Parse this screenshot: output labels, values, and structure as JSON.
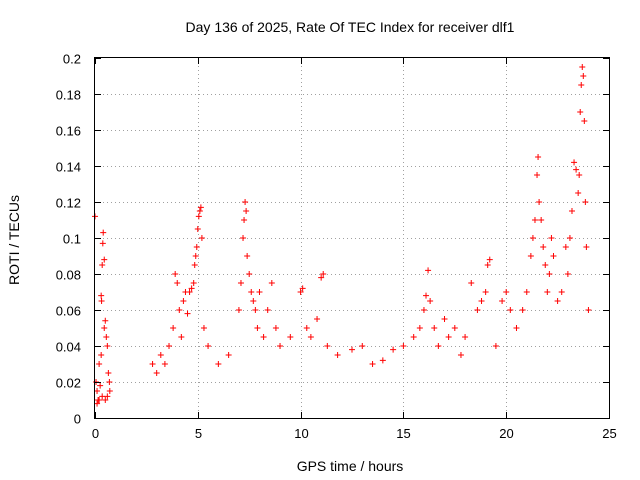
{
  "chart_data": {
    "type": "scatter",
    "title": "Day 136 of 2025, Rate Of TEC Index for receiver dlf1",
    "xlabel": "GPS time / hours",
    "ylabel": "ROTI / TECUs",
    "xlim": [
      0,
      25
    ],
    "ylim": [
      0,
      0.2
    ],
    "xticks": [
      0,
      5,
      10,
      15,
      20,
      25
    ],
    "yticks": [
      0,
      0.02,
      0.04,
      0.06,
      0.08,
      0.1,
      0.12,
      0.14,
      0.16,
      0.18,
      0.2
    ],
    "xtick_labels": [
      "0",
      "5",
      "10",
      "15",
      "20",
      "25"
    ],
    "ytick_labels": [
      "0",
      "0.02",
      "0.04",
      "0.06",
      "0.08",
      "0.1",
      "0.12",
      "0.14",
      "0.16",
      "0.18",
      "0.2"
    ],
    "grid": true,
    "marker": "+",
    "series": [
      {
        "color": "#ff0000",
        "points": [
          [
            0.0,
            0.112
          ],
          [
            0.05,
            0.02
          ],
          [
            0.1,
            0.015
          ],
          [
            0.15,
            0.01
          ],
          [
            0.2,
            0.03
          ],
          [
            0.25,
            0.018
          ],
          [
            0.3,
            0.035
          ],
          [
            0.3,
            0.068
          ],
          [
            0.32,
            0.065
          ],
          [
            0.35,
            0.085
          ],
          [
            0.38,
            0.097
          ],
          [
            0.4,
            0.103
          ],
          [
            0.45,
            0.088
          ],
          [
            0.45,
            0.05
          ],
          [
            0.5,
            0.054
          ],
          [
            0.55,
            0.045
          ],
          [
            0.6,
            0.04
          ],
          [
            0.65,
            0.025
          ],
          [
            0.7,
            0.02
          ],
          [
            0.72,
            0.015
          ],
          [
            0.1,
            0.008
          ],
          [
            0.2,
            0.01
          ],
          [
            0.35,
            0.012
          ],
          [
            0.5,
            0.01
          ],
          [
            0.6,
            0.012
          ],
          [
            2.8,
            0.03
          ],
          [
            3.0,
            0.025
          ],
          [
            3.2,
            0.035
          ],
          [
            3.4,
            0.03
          ],
          [
            3.6,
            0.04
          ],
          [
            3.8,
            0.05
          ],
          [
            3.9,
            0.08
          ],
          [
            4.0,
            0.075
          ],
          [
            4.1,
            0.06
          ],
          [
            4.2,
            0.045
          ],
          [
            4.3,
            0.065
          ],
          [
            4.4,
            0.07
          ],
          [
            4.5,
            0.058
          ],
          [
            4.6,
            0.07
          ],
          [
            4.7,
            0.072
          ],
          [
            4.8,
            0.075
          ],
          [
            4.85,
            0.085
          ],
          [
            4.9,
            0.09
          ],
          [
            4.95,
            0.095
          ],
          [
            5.0,
            0.105
          ],
          [
            5.05,
            0.112
          ],
          [
            5.1,
            0.115
          ],
          [
            5.15,
            0.117
          ],
          [
            5.2,
            0.1
          ],
          [
            5.3,
            0.05
          ],
          [
            5.5,
            0.04
          ],
          [
            6.0,
            0.03
          ],
          [
            6.5,
            0.035
          ],
          [
            7.0,
            0.06
          ],
          [
            7.1,
            0.075
          ],
          [
            7.2,
            0.1
          ],
          [
            7.25,
            0.11
          ],
          [
            7.3,
            0.12
          ],
          [
            7.35,
            0.115
          ],
          [
            7.4,
            0.09
          ],
          [
            7.5,
            0.08
          ],
          [
            7.6,
            0.07
          ],
          [
            7.7,
            0.065
          ],
          [
            7.8,
            0.06
          ],
          [
            7.9,
            0.05
          ],
          [
            8.0,
            0.07
          ],
          [
            8.2,
            0.045
          ],
          [
            8.4,
            0.06
          ],
          [
            8.6,
            0.075
          ],
          [
            8.8,
            0.05
          ],
          [
            9.0,
            0.04
          ],
          [
            9.5,
            0.045
          ],
          [
            10.0,
            0.07
          ],
          [
            10.1,
            0.072
          ],
          [
            10.3,
            0.05
          ],
          [
            10.5,
            0.045
          ],
          [
            10.8,
            0.055
          ],
          [
            11.0,
            0.078
          ],
          [
            11.1,
            0.08
          ],
          [
            11.3,
            0.04
          ],
          [
            11.8,
            0.035
          ],
          [
            12.5,
            0.038
          ],
          [
            13.0,
            0.04
          ],
          [
            13.5,
            0.03
          ],
          [
            14.0,
            0.032
          ],
          [
            14.5,
            0.038
          ],
          [
            15.0,
            0.04
          ],
          [
            15.5,
            0.045
          ],
          [
            15.8,
            0.05
          ],
          [
            16.0,
            0.06
          ],
          [
            16.1,
            0.068
          ],
          [
            16.2,
            0.082
          ],
          [
            16.3,
            0.065
          ],
          [
            16.5,
            0.05
          ],
          [
            16.7,
            0.04
          ],
          [
            17.0,
            0.055
          ],
          [
            17.2,
            0.045
          ],
          [
            17.5,
            0.05
          ],
          [
            17.8,
            0.035
          ],
          [
            18.0,
            0.045
          ],
          [
            18.3,
            0.075
          ],
          [
            18.6,
            0.06
          ],
          [
            18.8,
            0.065
          ],
          [
            19.0,
            0.07
          ],
          [
            19.1,
            0.085
          ],
          [
            19.2,
            0.088
          ],
          [
            19.5,
            0.04
          ],
          [
            19.8,
            0.065
          ],
          [
            20.0,
            0.07
          ],
          [
            20.2,
            0.06
          ],
          [
            20.5,
            0.05
          ],
          [
            20.8,
            0.06
          ],
          [
            21.0,
            0.07
          ],
          [
            21.2,
            0.09
          ],
          [
            21.3,
            0.1
          ],
          [
            21.4,
            0.11
          ],
          [
            21.5,
            0.135
          ],
          [
            21.55,
            0.145
          ],
          [
            21.6,
            0.12
          ],
          [
            21.7,
            0.11
          ],
          [
            21.8,
            0.095
          ],
          [
            21.9,
            0.085
          ],
          [
            22.0,
            0.07
          ],
          [
            22.1,
            0.08
          ],
          [
            22.2,
            0.1
          ],
          [
            22.3,
            0.09
          ],
          [
            22.5,
            0.065
          ],
          [
            22.7,
            0.07
          ],
          [
            22.9,
            0.095
          ],
          [
            23.0,
            0.08
          ],
          [
            23.1,
            0.1
          ],
          [
            23.2,
            0.115
          ],
          [
            23.3,
            0.142
          ],
          [
            23.4,
            0.138
          ],
          [
            23.5,
            0.125
          ],
          [
            23.55,
            0.135
          ],
          [
            23.6,
            0.17
          ],
          [
            23.65,
            0.185
          ],
          [
            23.7,
            0.195
          ],
          [
            23.75,
            0.19
          ],
          [
            23.8,
            0.165
          ],
          [
            23.85,
            0.12
          ],
          [
            23.9,
            0.095
          ],
          [
            24.0,
            0.06
          ]
        ]
      }
    ]
  }
}
